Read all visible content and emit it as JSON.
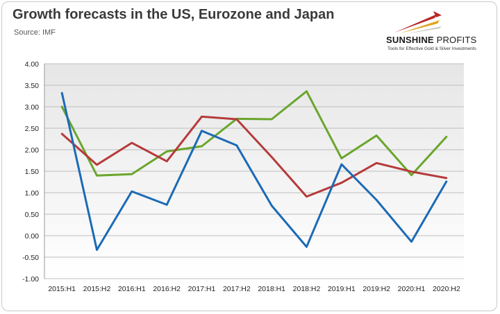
{
  "title": "Growth forecasts in the US, Eurozone and Japan",
  "source": "Source: IMF",
  "logo": {
    "name_bold": "SUNSHINE",
    "name_rest": " PROFITS",
    "tagline": "Tools for Effective Gold & Silver Investments"
  },
  "chart_data": {
    "type": "line",
    "title": "Growth forecasts in the US, Eurozone and Japan",
    "xlabel": "",
    "ylabel": "",
    "categories": [
      "2015:H1",
      "2015:H2",
      "2016:H1",
      "2016:H2",
      "2017:H1",
      "2017:H2",
      "2018:H1",
      "2018:H2",
      "2019:H1",
      "2019:H2",
      "2020:H1",
      "2020:H2"
    ],
    "ylim": [
      -1.0,
      4.0
    ],
    "ytick_step": 0.5,
    "grid": true,
    "legend": "none",
    "series": [
      {
        "color": "#6aa52c",
        "values": [
          3.0,
          1.4,
          1.43,
          1.96,
          2.08,
          2.72,
          2.71,
          3.36,
          1.8,
          2.33,
          1.41,
          2.3
        ]
      },
      {
        "color": "#b63a3a",
        "values": [
          2.37,
          1.65,
          2.16,
          1.73,
          2.77,
          2.71,
          1.83,
          0.91,
          1.23,
          1.69,
          1.49,
          1.34
        ]
      },
      {
        "color": "#1b6ab5",
        "values": [
          3.32,
          -0.33,
          1.03,
          0.72,
          2.44,
          2.1,
          0.7,
          -0.26,
          1.66,
          0.83,
          -0.14,
          1.26
        ]
      }
    ]
  }
}
